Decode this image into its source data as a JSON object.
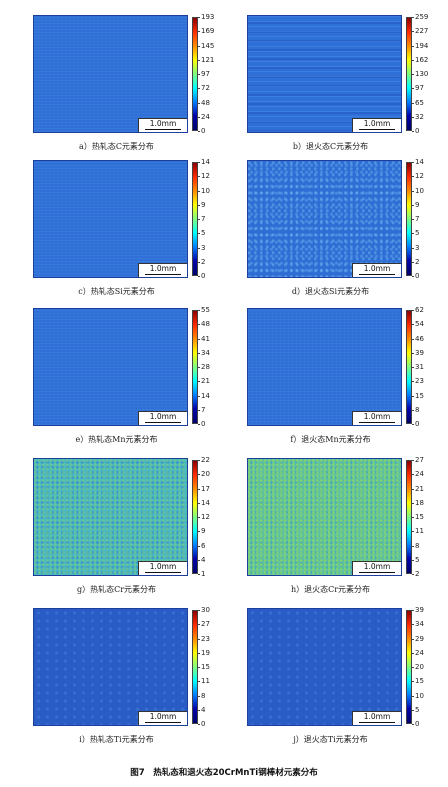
{
  "scale_label": "1.0mm",
  "figure_caption": "图7　热轧态和退火态20CrMnTi钢棒材元素分布",
  "panels": [
    {
      "caption": "a）热轧态C元素分布",
      "ticks": [
        "193",
        "169",
        "145",
        "121",
        "97",
        "72",
        "48",
        "24",
        "0"
      ],
      "texture": "blue"
    },
    {
      "caption": "b）退火态C元素分布",
      "ticks": [
        "259",
        "227",
        "194",
        "162",
        "130",
        "97",
        "65",
        "32",
        "0"
      ],
      "texture": "stripe"
    },
    {
      "caption": "c）热轧态Si元素分布",
      "ticks": [
        "14",
        "12",
        "10",
        "9",
        "7",
        "5",
        "3",
        "2",
        "0"
      ],
      "texture": "blue"
    },
    {
      "caption": "d）退火态Si元素分布",
      "ticks": [
        "14",
        "12",
        "10",
        "9",
        "7",
        "5",
        "3",
        "2",
        "0"
      ],
      "texture": "speck"
    },
    {
      "caption": "e）热轧态Mn元素分布",
      "ticks": [
        "55",
        "48",
        "41",
        "34",
        "28",
        "21",
        "14",
        "7",
        "0"
      ],
      "texture": "blue"
    },
    {
      "caption": "f）退火态Mn元素分布",
      "ticks": [
        "62",
        "54",
        "46",
        "39",
        "31",
        "23",
        "15",
        "8",
        "0"
      ],
      "texture": "blue"
    },
    {
      "caption": "g）热轧态Cr元素分布",
      "ticks": [
        "22",
        "20",
        "17",
        "14",
        "12",
        "9",
        "6",
        "4",
        "1"
      ],
      "texture": "green"
    },
    {
      "caption": "h）退火态Cr元素分布",
      "ticks": [
        "27",
        "24",
        "21",
        "18",
        "15",
        "11",
        "8",
        "5",
        "2"
      ],
      "texture": "green2"
    },
    {
      "caption": "i）热轧态Ti元素分布",
      "ticks": [
        "30",
        "27",
        "23",
        "19",
        "15",
        "11",
        "8",
        "4",
        "0"
      ],
      "texture": "dark"
    },
    {
      "caption": "j）退火态Ti元素分布",
      "ticks": [
        "39",
        "34",
        "29",
        "24",
        "20",
        "15",
        "10",
        "5",
        "0"
      ],
      "texture": "dark"
    }
  ]
}
